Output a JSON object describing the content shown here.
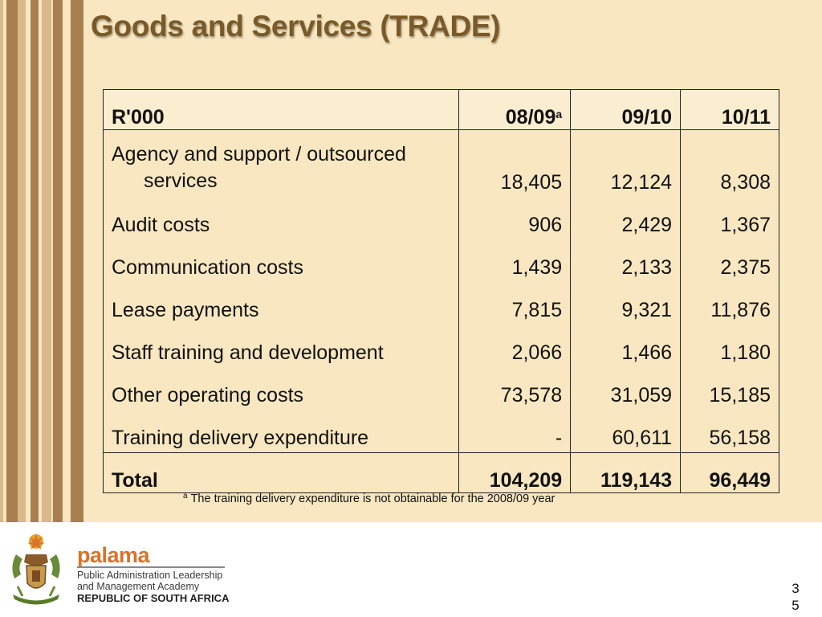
{
  "slide": {
    "title": "Goods and Services (TRADE)",
    "page_number": "35"
  },
  "colors": {
    "background": "#f8e7c0",
    "stripe_dark": "#a8804f",
    "stripe_light": "#d9b88a",
    "title": "#7a5a28",
    "brand_orange": "#d9732a"
  },
  "table": {
    "header": {
      "label": "R'000",
      "col1": "08/09",
      "col1_sup": "a",
      "col2": "09/10",
      "col3": "10/11"
    },
    "rows": [
      {
        "label": "Agency and support / outsourced services",
        "v1": "18,405",
        "v2": "12,124",
        "v3": "8,308"
      },
      {
        "label": "Audit costs",
        "v1": "906",
        "v2": "2,429",
        "v3": "1,367"
      },
      {
        "label": "Communication costs",
        "v1": "1,439",
        "v2": "2,133",
        "v3": "2,375"
      },
      {
        "label": "Lease payments",
        "v1": "7,815",
        "v2": "9,321",
        "v3": "11,876"
      },
      {
        "label": "Staff training and development",
        "v1": "2,066",
        "v2": "1,466",
        "v3": "1,180"
      },
      {
        "label": "Other operating costs",
        "v1": "73,578",
        "v2": "31,059",
        "v3": "15,185"
      },
      {
        "label": "Training delivery expenditure",
        "v1": "-",
        "v2": "60,611",
        "v3": "56,158"
      }
    ],
    "total": {
      "label": "Total",
      "v1": "104,209",
      "v2": "119,143",
      "v3": "96,449"
    }
  },
  "footnote": {
    "marker": "a",
    "text": "The training delivery expenditure is not obtainable for the 2008/09 year"
  },
  "footer": {
    "brand": "palama",
    "org_line1": "Public Administration Leadership",
    "org_line2": "and Management Academy",
    "org_line3": "REPUBLIC OF SOUTH AFRICA"
  }
}
